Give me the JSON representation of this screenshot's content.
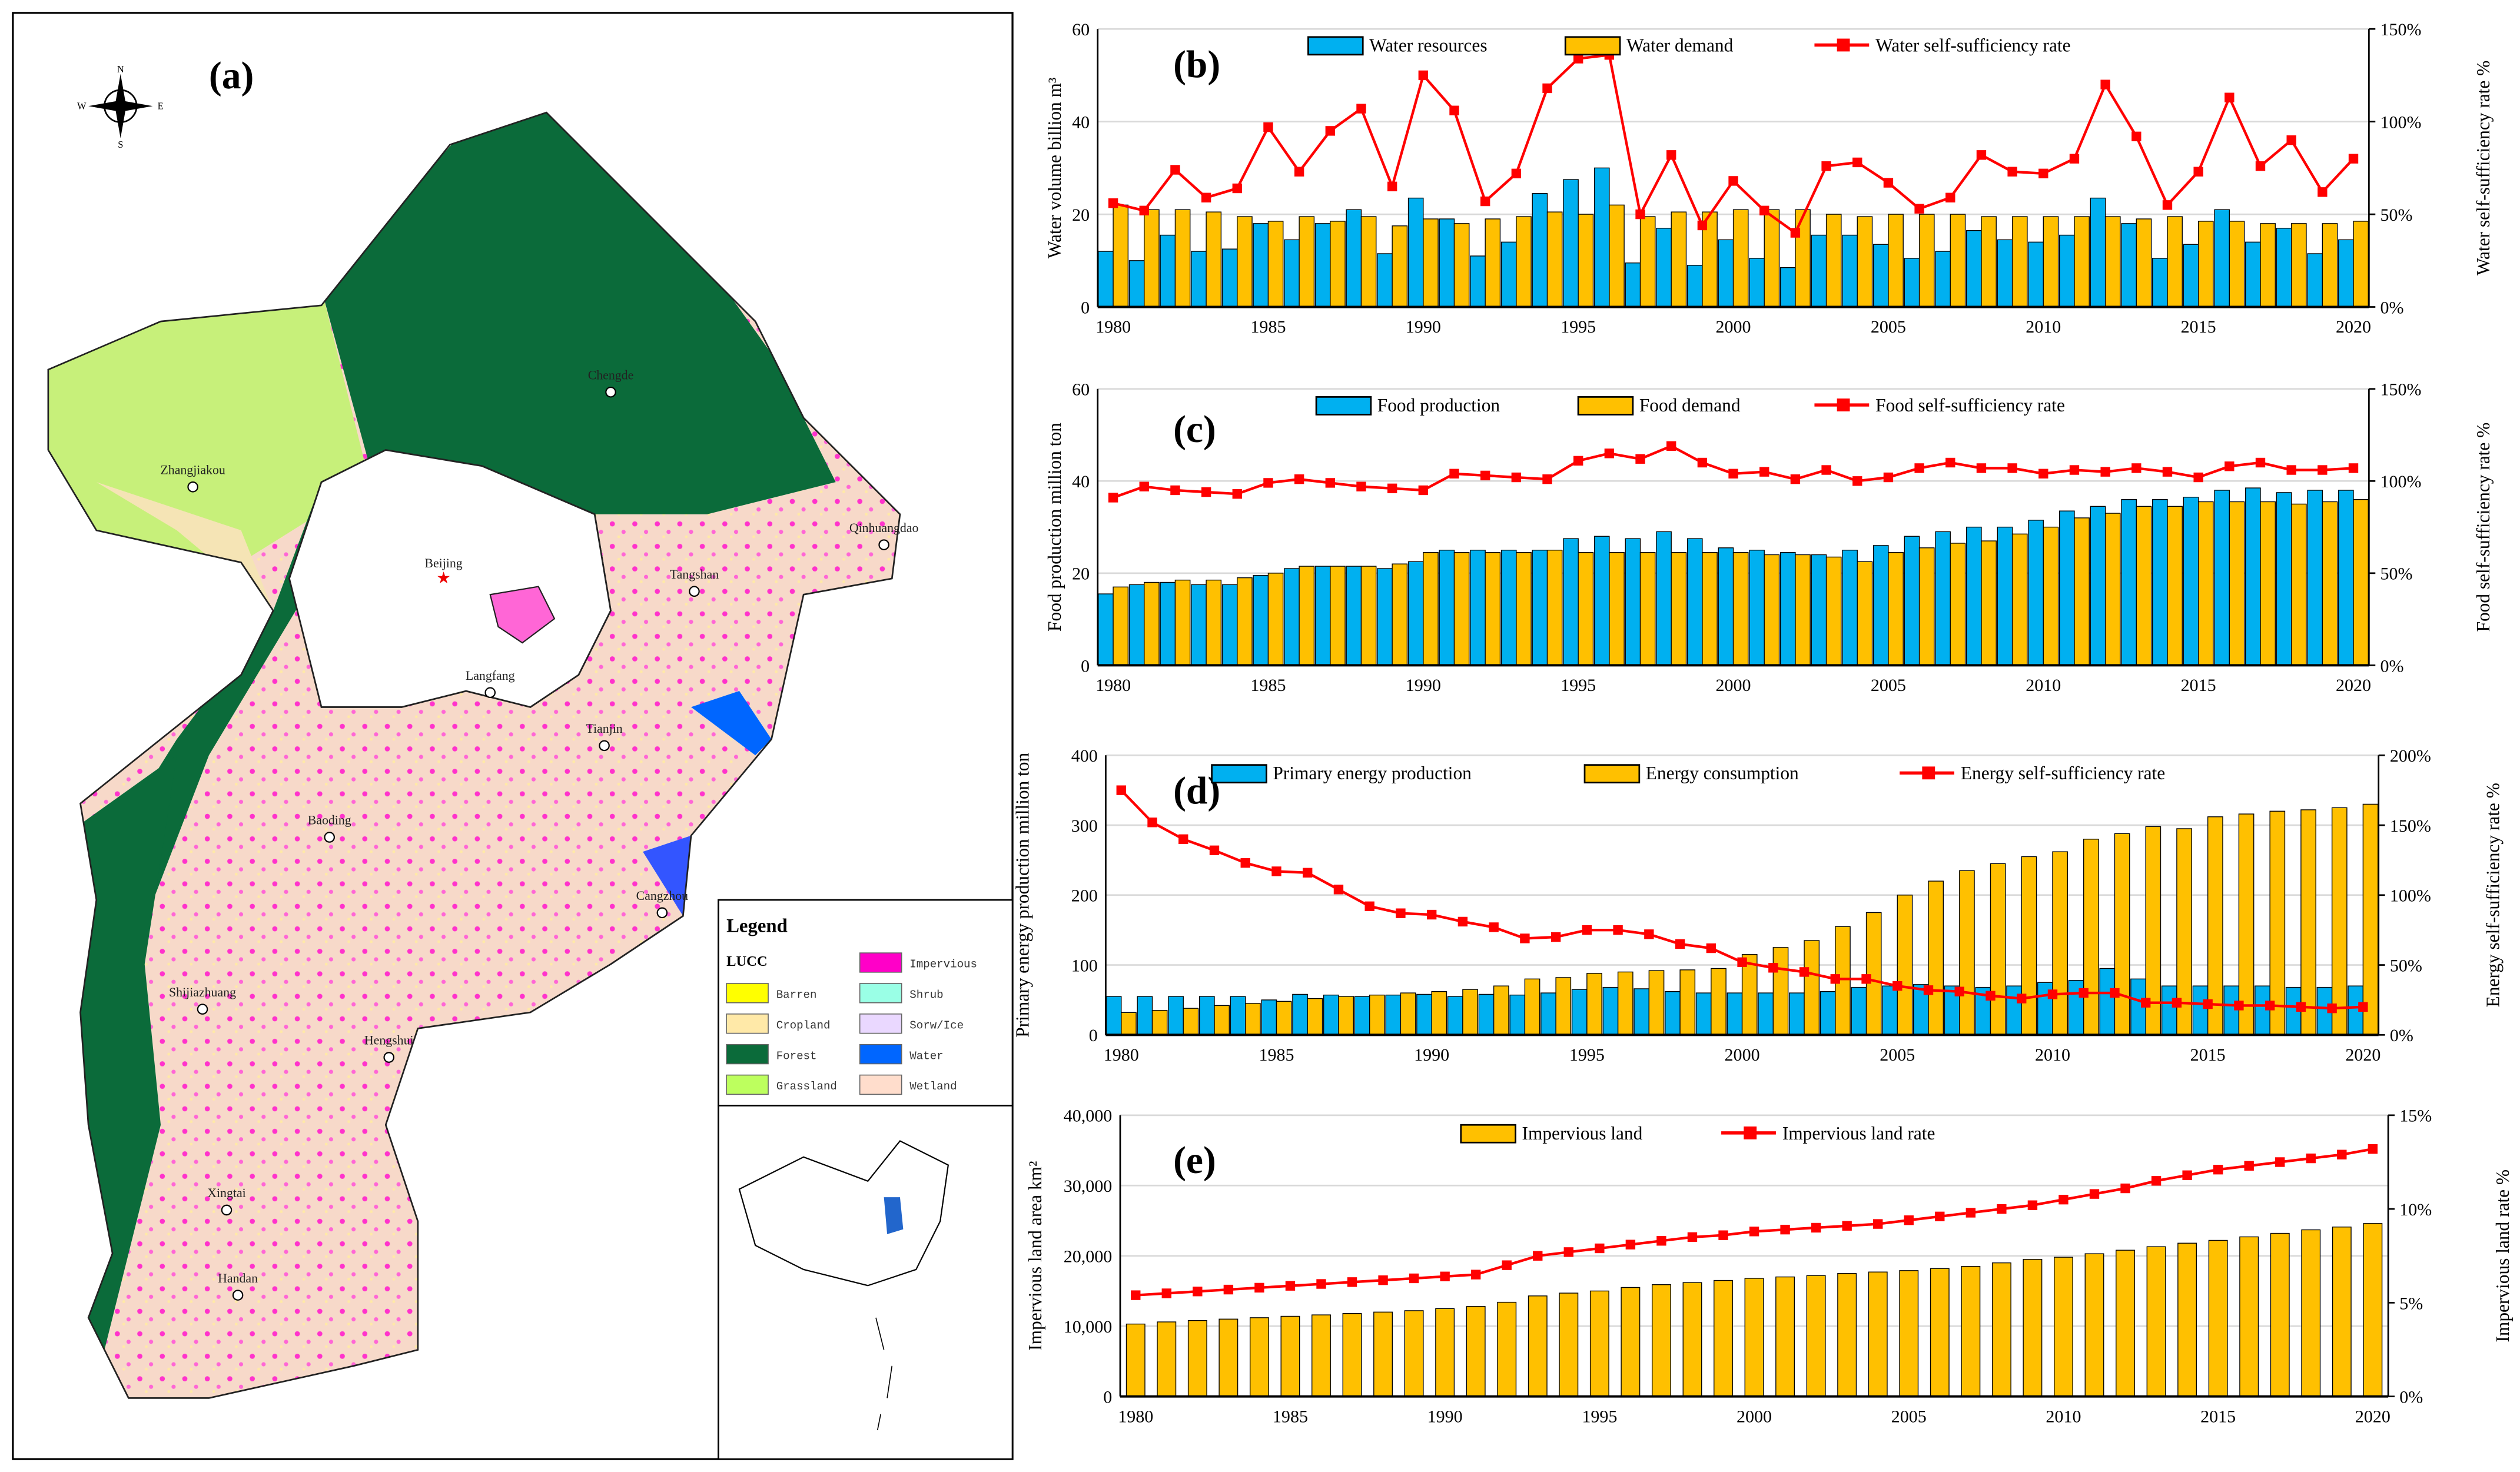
{
  "map": {
    "panel_label": "(a)",
    "compass": {
      "n": "N",
      "s": "S",
      "e": "E",
      "w": "W"
    },
    "cities": [
      "Chengde",
      "Zhangjiakou",
      "Qinhuangdao",
      "Beijing",
      "Tangshan",
      "Langfang",
      "Tianjin",
      "Baoding",
      "Cangzhou",
      "Shijiazhuang",
      "Hengshui",
      "Xingtai",
      "Handan"
    ],
    "legend": {
      "title": "Legend",
      "subtitle": "LUCC",
      "items": [
        {
          "label": "Barren",
          "color": "#ffff00"
        },
        {
          "label": "Cropland",
          "color": "#ffe9a8"
        },
        {
          "label": "Forest",
          "color": "#0b6b3a"
        },
        {
          "label": "Grassland",
          "color": "#bdff5e"
        },
        {
          "label": "Impervious",
          "color": "#ff00c8"
        },
        {
          "label": "Shrub",
          "color": "#9affe6"
        },
        {
          "label": "Sorw/Ice",
          "color": "#ead8ff"
        },
        {
          "label": "Water",
          "color": "#0066ff"
        },
        {
          "label": "Wetland",
          "color": "#ffddcc"
        }
      ]
    }
  },
  "chart_data": [
    {
      "type": "bar+line",
      "panel_label": "(b)",
      "x": [
        1980,
        1981,
        1982,
        1983,
        1984,
        1985,
        1986,
        1987,
        1988,
        1989,
        1990,
        1991,
        1992,
        1993,
        1994,
        1995,
        1996,
        1997,
        1998,
        1999,
        2000,
        2001,
        2002,
        2003,
        2004,
        2005,
        2006,
        2007,
        2008,
        2009,
        2010,
        2011,
        2012,
        2013,
        2014,
        2015,
        2016,
        2017,
        2018,
        2019,
        2020
      ],
      "xticks": [
        "1980",
        "1985",
        "1990",
        "1995",
        "2000",
        "2005",
        "2010",
        "2015",
        "2020"
      ],
      "ylabel": "Water volume billion m³",
      "y2label": "Water self-sufficiency rate %",
      "ylim": [
        0,
        60
      ],
      "yticks": [
        "0",
        "20",
        "40",
        "60"
      ],
      "y2lim": [
        0,
        150
      ],
      "y2ticks": [
        "0%",
        "50%",
        "100%",
        "150%"
      ],
      "series": [
        {
          "name": "Water resources",
          "kind": "bar",
          "color": "#00b0f0",
          "values": [
            12,
            10,
            15.5,
            12,
            12.5,
            18,
            14.5,
            18,
            21,
            11.5,
            23.5,
            19,
            11,
            14,
            24.5,
            27.5,
            30,
            9.5,
            17,
            9,
            14.5,
            10.5,
            8.5,
            15.5,
            15.5,
            13.5,
            10.5,
            12,
            16.5,
            14.5,
            14,
            15.5,
            23.5,
            18,
            10.5,
            13.5,
            21,
            14,
            17,
            11.5,
            14.5
          ]
        },
        {
          "name": "Water demand",
          "kind": "bar",
          "color": "#ffc000",
          "values": [
            22,
            21,
            21,
            20.5,
            19.5,
            18.5,
            19.5,
            18.5,
            19.5,
            17.5,
            19,
            18,
            19,
            19.5,
            20.5,
            20,
            22,
            19.5,
            20.5,
            20.5,
            21,
            21,
            21,
            20,
            19.5,
            20,
            20,
            20,
            19.5,
            19.5,
            19.5,
            19.5,
            19.5,
            19,
            19.5,
            18.5,
            18.5,
            18,
            18,
            18,
            18.5
          ]
        },
        {
          "name": "Water self-sufficiency rate",
          "kind": "line",
          "axis": "right",
          "color": "#ff0000",
          "values": [
            56,
            52,
            74,
            59,
            64,
            97,
            73,
            95,
            107,
            65,
            125,
            106,
            57,
            72,
            118,
            134,
            136,
            50,
            82,
            44,
            68,
            52,
            40,
            76,
            78,
            67,
            53,
            59,
            82,
            73,
            72,
            80,
            120,
            92,
            55,
            73,
            113,
            76,
            90,
            62,
            80
          ]
        }
      ]
    },
    {
      "type": "bar+line",
      "panel_label": "(c)",
      "x": [
        1980,
        1981,
        1982,
        1983,
        1984,
        1985,
        1986,
        1987,
        1988,
        1989,
        1990,
        1991,
        1992,
        1993,
        1994,
        1995,
        1996,
        1997,
        1998,
        1999,
        2000,
        2001,
        2002,
        2003,
        2004,
        2005,
        2006,
        2007,
        2008,
        2009,
        2010,
        2011,
        2012,
        2013,
        2014,
        2015,
        2016,
        2017,
        2018,
        2019,
        2020
      ],
      "xticks": [
        "1980",
        "1985",
        "1990",
        "1995",
        "2000",
        "2005",
        "2010",
        "2015",
        "2020"
      ],
      "ylabel": "Food production million ton",
      "y2label": "Food  self-sufficiency rate %",
      "ylim": [
        0,
        60
      ],
      "yticks": [
        "0",
        "20",
        "40",
        "60"
      ],
      "y2lim": [
        0,
        150
      ],
      "y2ticks": [
        "0%",
        "50%",
        "100%",
        "150%"
      ],
      "series": [
        {
          "name": "Food production",
          "kind": "bar",
          "color": "#00b0f0",
          "values": [
            15.5,
            17.5,
            18,
            17.5,
            17.5,
            19.5,
            21,
            21.5,
            21.5,
            21,
            22.5,
            25,
            25,
            25,
            25,
            27.5,
            28,
            27.5,
            29,
            27.5,
            25.5,
            25,
            24.5,
            24,
            25,
            26,
            28,
            29,
            30,
            30,
            31.5,
            33.5,
            34.5,
            36,
            36,
            36.5,
            38,
            38.5,
            37.5,
            38,
            38
          ]
        },
        {
          "name": "Food demand",
          "kind": "bar",
          "color": "#ffc000",
          "values": [
            17,
            18,
            18.5,
            18.5,
            19,
            20,
            21.5,
            21.5,
            21.5,
            22,
            24.5,
            24.5,
            24.5,
            24.5,
            25,
            24.5,
            24.5,
            24.5,
            24.5,
            24.5,
            24.5,
            24,
            24,
            23.5,
            22.5,
            24.5,
            25.5,
            26.5,
            27,
            28.5,
            30,
            32,
            33,
            34.5,
            34.5,
            35.5,
            35.5,
            35.5,
            35,
            35.5,
            36
          ]
        },
        {
          "name": "Food self-sufficiency rate",
          "kind": "line",
          "axis": "right",
          "color": "#ff0000",
          "values": [
            91,
            97,
            95,
            94,
            93,
            99,
            101,
            99,
            97,
            96,
            95,
            104,
            103,
            102,
            101,
            111,
            115,
            112,
            119,
            110,
            104,
            105,
            101,
            106,
            100,
            102,
            107,
            110,
            107,
            107,
            104,
            106,
            105,
            107,
            105,
            102,
            108,
            110,
            106,
            106,
            107
          ]
        }
      ]
    },
    {
      "type": "bar+line",
      "panel_label": "(d)",
      "x": [
        1980,
        1981,
        1982,
        1983,
        1984,
        1985,
        1986,
        1987,
        1988,
        1989,
        1990,
        1991,
        1992,
        1993,
        1994,
        1995,
        1996,
        1997,
        1998,
        1999,
        2000,
        2001,
        2002,
        2003,
        2004,
        2005,
        2006,
        2007,
        2008,
        2009,
        2010,
        2011,
        2012,
        2013,
        2014,
        2015,
        2016,
        2017,
        2018,
        2019,
        2020
      ],
      "xticks": [
        "1980",
        "1985",
        "1990",
        "1995",
        "2000",
        "2005",
        "2010",
        "2015",
        "2020"
      ],
      "ylabel": "Primary energy production million ton",
      "y2label": "Energy  self-sufficiency rate %",
      "ylim": [
        0,
        400
      ],
      "yticks": [
        "0",
        "100",
        "200",
        "300",
        "400"
      ],
      "y2lim": [
        0,
        200
      ],
      "y2ticks": [
        "0%",
        "50%",
        "100%",
        "150%",
        "200%"
      ],
      "series": [
        {
          "name": "Primary energy production",
          "kind": "bar",
          "color": "#00b0f0",
          "values": [
            55,
            55,
            55,
            55,
            55,
            50,
            58,
            57,
            55,
            57,
            58,
            55,
            58,
            57,
            60,
            65,
            68,
            66,
            62,
            60,
            60,
            60,
            60,
            62,
            68,
            70,
            72,
            70,
            68,
            70,
            75,
            78,
            95,
            80,
            70,
            70,
            70,
            70,
            68,
            68,
            70
          ]
        },
        {
          "name": "Energy consumption",
          "kind": "bar",
          "color": "#ffc000",
          "values": [
            32,
            35,
            38,
            42,
            45,
            48,
            52,
            55,
            57,
            60,
            62,
            65,
            70,
            80,
            82,
            88,
            90,
            92,
            93,
            95,
            115,
            125,
            135,
            155,
            175,
            200,
            220,
            235,
            245,
            255,
            262,
            280,
            288,
            298,
            295,
            312,
            316,
            320,
            322,
            325,
            330
          ]
        },
        {
          "name": "Energy self-sufficiency rate",
          "kind": "line",
          "axis": "right",
          "color": "#ff0000",
          "values": [
            175,
            152,
            140,
            132,
            123,
            117,
            116,
            104,
            92,
            87,
            86,
            81,
            77,
            69,
            70,
            75,
            75,
            72,
            65,
            62,
            52,
            48,
            45,
            40,
            40,
            35,
            32,
            31,
            28,
            26,
            29,
            30,
            30,
            23,
            23,
            22,
            21,
            21,
            20,
            19,
            20
          ]
        }
      ]
    },
    {
      "type": "bar+line",
      "panel_label": "(e)",
      "x": [
        1980,
        1981,
        1982,
        1983,
        1984,
        1985,
        1986,
        1987,
        1988,
        1989,
        1990,
        1991,
        1992,
        1993,
        1994,
        1995,
        1996,
        1997,
        1998,
        1999,
        2000,
        2001,
        2002,
        2003,
        2004,
        2005,
        2006,
        2007,
        2008,
        2009,
        2010,
        2011,
        2012,
        2013,
        2014,
        2015,
        2016,
        2017,
        2018,
        2019,
        2020
      ],
      "xticks": [
        "1980",
        "1985",
        "1990",
        "1995",
        "2000",
        "2005",
        "2010",
        "2015",
        "2020"
      ],
      "ylabel": "Impervious land area km²",
      "y2label": "Impervious land rate %",
      "ylim": [
        0,
        40000
      ],
      "yticks": [
        "0",
        "10,000",
        "20,000",
        "30,000",
        "40,000"
      ],
      "y2lim": [
        0,
        15
      ],
      "y2ticks": [
        "0%",
        "5%",
        "10%",
        "15%"
      ],
      "series": [
        {
          "name": "Impervious land",
          "kind": "bar",
          "color": "#ffc000",
          "values": [
            10300,
            10600,
            10800,
            11000,
            11200,
            11400,
            11600,
            11800,
            12000,
            12200,
            12500,
            12800,
            13400,
            14300,
            14700,
            15000,
            15500,
            15900,
            16200,
            16500,
            16800,
            17000,
            17200,
            17500,
            17700,
            17900,
            18200,
            18500,
            19000,
            19500,
            19800,
            20300,
            20800,
            21300,
            21800,
            22200,
            22700,
            23200,
            23700,
            24100,
            24600
          ]
        },
        {
          "name": "Impervious land rate",
          "kind": "line",
          "axis": "right",
          "color": "#ff0000",
          "values": [
            5.4,
            5.5,
            5.6,
            5.7,
            5.8,
            5.9,
            6.0,
            6.1,
            6.2,
            6.3,
            6.4,
            6.5,
            7.0,
            7.5,
            7.7,
            7.9,
            8.1,
            8.3,
            8.5,
            8.6,
            8.8,
            8.9,
            9.0,
            9.1,
            9.2,
            9.4,
            9.6,
            9.8,
            10.0,
            10.2,
            10.5,
            10.8,
            11.1,
            11.5,
            11.8,
            12.1,
            12.3,
            12.5,
            12.7,
            12.9,
            13.2
          ]
        }
      ]
    }
  ]
}
